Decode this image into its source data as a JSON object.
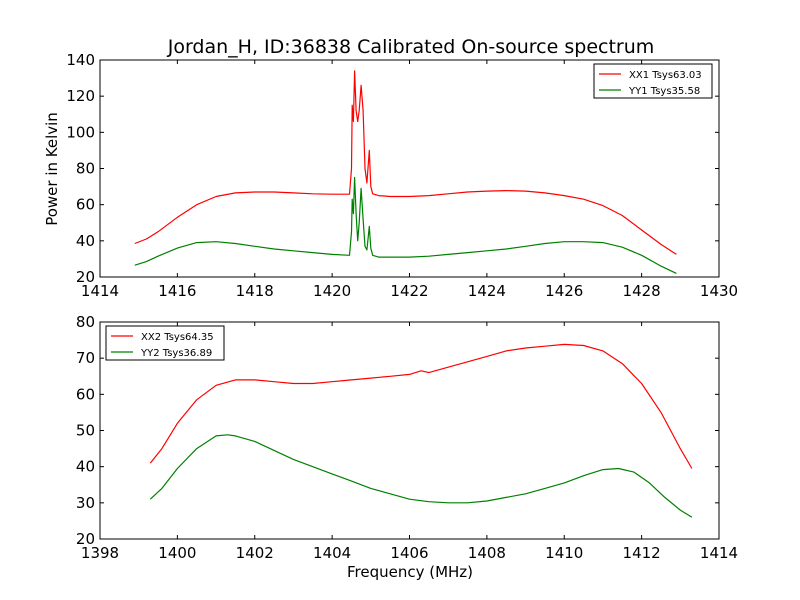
{
  "figure": {
    "title": "Jordan_H, ID:36838 Calibrated On-source spectrum",
    "ylabel": "Power in Kelvin",
    "xlabel": "Frequency (MHz)"
  },
  "chart_data": [
    {
      "type": "line",
      "title": "Jordan_H, ID:36838 Calibrated On-source spectrum",
      "xlabel": "",
      "ylabel": "Power in Kelvin",
      "xlim": [
        1414,
        1430
      ],
      "ylim": [
        20,
        140
      ],
      "xticks": [
        "1414",
        "1416",
        "1418",
        "1420",
        "1422",
        "1424",
        "1426",
        "1428",
        "1430"
      ],
      "yticks": [
        "20",
        "40",
        "60",
        "80",
        "100",
        "120",
        "140"
      ],
      "grid": false,
      "legend_position": "top-right",
      "series": [
        {
          "name": "XX1 Tsys63.03",
          "color": "#ff0000",
          "points": [
            [
              1414.9,
              38.5
            ],
            [
              1415.2,
              41
            ],
            [
              1415.5,
              45
            ],
            [
              1416.0,
              53
            ],
            [
              1416.5,
              60
            ],
            [
              1417.0,
              64.5
            ],
            [
              1417.5,
              66.5
            ],
            [
              1418.0,
              67
            ],
            [
              1418.5,
              67
            ],
            [
              1419.0,
              66.5
            ],
            [
              1419.5,
              66
            ],
            [
              1420.0,
              65.8
            ],
            [
              1420.45,
              65.8
            ],
            [
              1420.5,
              80
            ],
            [
              1420.52,
              115
            ],
            [
              1420.55,
              106
            ],
            [
              1420.58,
              134
            ],
            [
              1420.62,
              112
            ],
            [
              1420.66,
              106
            ],
            [
              1420.7,
              112
            ],
            [
              1420.75,
              126
            ],
            [
              1420.8,
              112
            ],
            [
              1420.85,
              80
            ],
            [
              1420.9,
              72
            ],
            [
              1420.96,
              90
            ],
            [
              1421.0,
              70
            ],
            [
              1421.05,
              66
            ],
            [
              1421.2,
              65
            ],
            [
              1421.5,
              64.5
            ],
            [
              1422.0,
              64.5
            ],
            [
              1422.5,
              65
            ],
            [
              1423.0,
              66
            ],
            [
              1423.5,
              67
            ],
            [
              1424.0,
              67.5
            ],
            [
              1424.5,
              67.8
            ],
            [
              1425.0,
              67.5
            ],
            [
              1425.5,
              66.5
            ],
            [
              1426.0,
              65
            ],
            [
              1426.5,
              63
            ],
            [
              1427.0,
              59.5
            ],
            [
              1427.5,
              54
            ],
            [
              1428.0,
              46
            ],
            [
              1428.5,
              38
            ],
            [
              1428.9,
              32.5
            ]
          ]
        },
        {
          "name": "YY1 Tsys35.58",
          "color": "#008000",
          "points": [
            [
              1414.9,
              26.5
            ],
            [
              1415.2,
              28.5
            ],
            [
              1415.5,
              31.5
            ],
            [
              1416.0,
              36
            ],
            [
              1416.5,
              39
            ],
            [
              1417.0,
              39.5
            ],
            [
              1417.5,
              38.5
            ],
            [
              1418.0,
              37
            ],
            [
              1418.5,
              35.5
            ],
            [
              1419.0,
              34.5
            ],
            [
              1419.5,
              33.5
            ],
            [
              1420.0,
              32.5
            ],
            [
              1420.45,
              32
            ],
            [
              1420.5,
              45
            ],
            [
              1420.52,
              63
            ],
            [
              1420.55,
              55
            ],
            [
              1420.58,
              75
            ],
            [
              1420.62,
              55
            ],
            [
              1420.66,
              40
            ],
            [
              1420.7,
              50
            ],
            [
              1420.75,
              69
            ],
            [
              1420.8,
              52
            ],
            [
              1420.85,
              37
            ],
            [
              1420.9,
              35
            ],
            [
              1420.96,
              48
            ],
            [
              1421.0,
              36
            ],
            [
              1421.05,
              32
            ],
            [
              1421.2,
              31
            ],
            [
              1421.5,
              31
            ],
            [
              1422.0,
              31
            ],
            [
              1422.5,
              31.5
            ],
            [
              1423.0,
              32.5
            ],
            [
              1423.5,
              33.5
            ],
            [
              1424.0,
              34.5
            ],
            [
              1424.5,
              35.5
            ],
            [
              1425.0,
              37
            ],
            [
              1425.5,
              38.5
            ],
            [
              1426.0,
              39.5
            ],
            [
              1426.5,
              39.5
            ],
            [
              1427.0,
              39
            ],
            [
              1427.5,
              36.5
            ],
            [
              1428.0,
              32
            ],
            [
              1428.5,
              26
            ],
            [
              1428.9,
              22
            ]
          ]
        }
      ]
    },
    {
      "type": "line",
      "title": "",
      "xlabel": "Frequency (MHz)",
      "ylabel": "",
      "xlim": [
        1398,
        1414
      ],
      "ylim": [
        20,
        80
      ],
      "xticks": [
        "1398",
        "1400",
        "1402",
        "1404",
        "1406",
        "1408",
        "1410",
        "1412",
        "1414"
      ],
      "yticks": [
        "20",
        "30",
        "40",
        "50",
        "60",
        "70",
        "80"
      ],
      "grid": false,
      "legend_position": "top-left",
      "series": [
        {
          "name": "XX2 Tsys64.35",
          "color": "#ff0000",
          "points": [
            [
              1399.3,
              41
            ],
            [
              1399.6,
              45
            ],
            [
              1400.0,
              52
            ],
            [
              1400.5,
              58.5
            ],
            [
              1401.0,
              62.5
            ],
            [
              1401.5,
              64
            ],
            [
              1402.0,
              64
            ],
            [
              1402.5,
              63.5
            ],
            [
              1403.0,
              63
            ],
            [
              1403.5,
              63
            ],
            [
              1404.0,
              63.5
            ],
            [
              1404.5,
              64
            ],
            [
              1405.0,
              64.5
            ],
            [
              1405.5,
              65
            ],
            [
              1406.0,
              65.5
            ],
            [
              1406.3,
              66.5
            ],
            [
              1406.5,
              66
            ],
            [
              1407.0,
              67.5
            ],
            [
              1407.5,
              69
            ],
            [
              1408.0,
              70.5
            ],
            [
              1408.5,
              72
            ],
            [
              1409.0,
              72.8
            ],
            [
              1409.5,
              73.3
            ],
            [
              1410.0,
              73.8
            ],
            [
              1410.5,
              73.5
            ],
            [
              1411.0,
              72
            ],
            [
              1411.5,
              68.5
            ],
            [
              1412.0,
              63
            ],
            [
              1412.5,
              55
            ],
            [
              1413.0,
              45
            ],
            [
              1413.3,
              39.5
            ]
          ]
        },
        {
          "name": "YY2 Tsys36.89",
          "color": "#008000",
          "points": [
            [
              1399.3,
              31
            ],
            [
              1399.6,
              34
            ],
            [
              1400.0,
              39.5
            ],
            [
              1400.5,
              45
            ],
            [
              1401.0,
              48.5
            ],
            [
              1401.3,
              48.8
            ],
            [
              1401.5,
              48.5
            ],
            [
              1402.0,
              47
            ],
            [
              1402.5,
              44.5
            ],
            [
              1403.0,
              42
            ],
            [
              1403.5,
              40
            ],
            [
              1404.0,
              38
            ],
            [
              1404.5,
              36
            ],
            [
              1405.0,
              34
            ],
            [
              1405.5,
              32.5
            ],
            [
              1406.0,
              31
            ],
            [
              1406.5,
              30.3
            ],
            [
              1407.0,
              30
            ],
            [
              1407.5,
              30
            ],
            [
              1408.0,
              30.5
            ],
            [
              1408.5,
              31.5
            ],
            [
              1409.0,
              32.5
            ],
            [
              1409.5,
              34
            ],
            [
              1410.0,
              35.5
            ],
            [
              1410.5,
              37.5
            ],
            [
              1411.0,
              39.2
            ],
            [
              1411.4,
              39.5
            ],
            [
              1411.8,
              38.5
            ],
            [
              1412.2,
              35.5
            ],
            [
              1412.6,
              31.5
            ],
            [
              1413.0,
              28
            ],
            [
              1413.3,
              26
            ]
          ]
        }
      ]
    }
  ]
}
